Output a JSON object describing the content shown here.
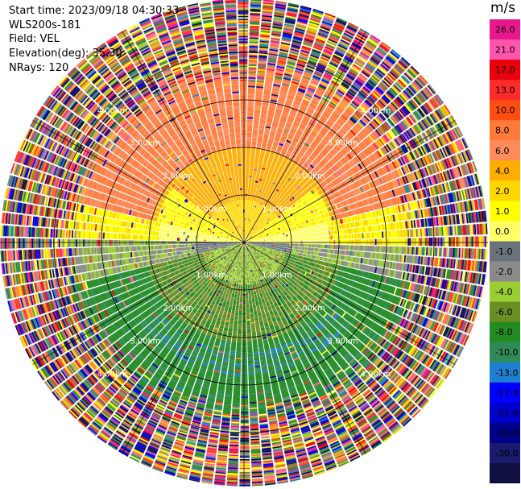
{
  "info": {
    "start_time": "Start time: 2023/09/18 04:30:33",
    "instrument": "WLS200s-181",
    "field": "Field: VEL",
    "elevation": "Elevation(deg): 35.30",
    "nrays": "NRays: 120"
  },
  "colorbar": {
    "unit": "m/s",
    "ticks": [
      "26.0",
      "21.0",
      "17.0",
      "13.0",
      "10.0",
      "8.0",
      "6.0",
      "4.0",
      "2.0",
      "1.0",
      "0.0",
      "-1.0",
      "-2.0",
      "-4.0",
      "-6.0",
      "-8.0",
      "-10.0",
      "-13.0",
      "-17.0",
      "-21.0",
      "-26.0",
      "-30.0"
    ],
    "colors": [
      "#e8188c",
      "#ff55aa",
      "#e8000c",
      "#ff2a2a",
      "#ff4d12",
      "#ff7b3a",
      "#ff8a5c",
      "#ffae00",
      "#ffd700",
      "#ffff00",
      "#ffff66",
      "#6a737b",
      "#8a8a8a",
      "#9acd32",
      "#6b8e23",
      "#228b22",
      "#2e8b57",
      "#1e7fd0",
      "#0000ff",
      "#0000cd",
      "#00008b",
      "#1a1a6e",
      "#101040"
    ]
  },
  "chart_data": {
    "type": "heatmap",
    "title": "",
    "field": "VEL",
    "units": "m/s",
    "elevation_deg": 35.3,
    "nrays": 120,
    "range_rings_km": [
      1.0,
      2.0,
      3.0,
      4.0
    ],
    "ring_labels": [
      "1.00km",
      "2.00km",
      "3.00km",
      "4.00km"
    ],
    "ring_labels_visible": [
      {
        "ring": "1.00km",
        "text": "1.00km"
      },
      {
        "ring": "2.00km",
        "text": "2.00km"
      },
      {
        "ring": "3.00km",
        "text": "3.00km"
      },
      {
        "ring": "4.00km",
        "text": "4.00km"
      }
    ],
    "color_scale": {
      "bounds": [
        -30.0,
        -26.0,
        -21.0,
        -17.0,
        -13.0,
        -10.0,
        -8.0,
        -6.0,
        -4.0,
        -2.0,
        -1.0,
        0.0,
        1.0,
        2.0,
        4.0,
        6.0,
        8.0,
        10.0,
        13.0,
        17.0,
        21.0,
        26.0
      ],
      "vmin": -30.0,
      "vmax": 26.0
    },
    "pattern": {
      "description_regions": [
        {
          "sector": "north",
          "range_km": [
            0,
            3.0
          ],
          "value_ms": 6.0
        },
        {
          "sector": "north",
          "range_km": [
            0,
            1.0
          ],
          "value_ms": 2.0
        },
        {
          "sector": "east-west",
          "range_km": [
            0,
            2.0
          ],
          "value_ms": 0.0
        },
        {
          "sector": "south",
          "range_km": [
            0,
            3.0
          ],
          "value_ms": -6.0
        },
        {
          "sector": "south",
          "range_km": [
            2.2,
            2.6
          ],
          "value_ms": -8.0
        },
        {
          "sector": "all",
          "range_km": [
            3.0,
            5.0
          ],
          "value_ms": "noise"
        }
      ]
    }
  }
}
